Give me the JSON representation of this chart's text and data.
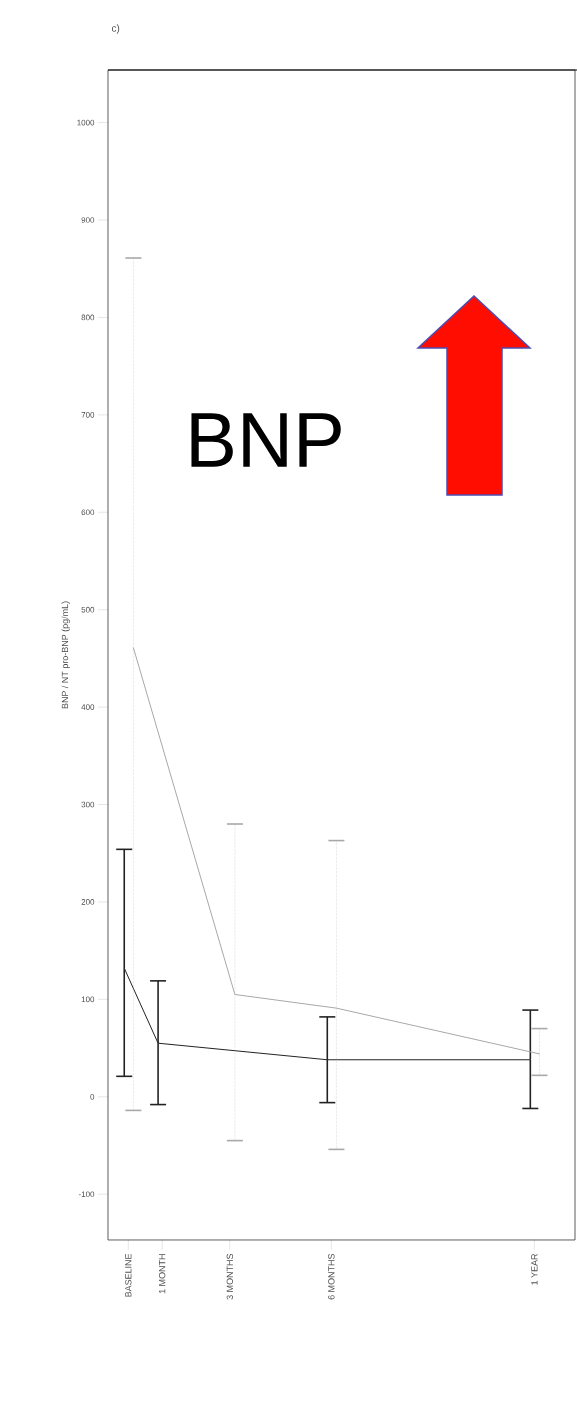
{
  "chart_data": {
    "type": "line",
    "annotations": [
      "c)",
      "BNP"
    ],
    "ylabel": "BNP / NT pro-BNP (pg/mL)",
    "categories": [
      "BASELINE",
      "1 MONTH",
      null,
      "3 MONTHS",
      null,
      null,
      "6 MONTHS",
      null,
      null,
      null,
      null,
      null,
      "1 YEAR"
    ],
    "ylim": [
      -147,
      1054
    ],
    "yticks": [
      -100,
      0,
      100,
      200,
      300,
      400,
      500,
      600,
      700,
      800,
      900,
      1000
    ],
    "grid": false,
    "marker": "none",
    "series": [
      {
        "color": "#222222",
        "values": [
          132,
          55,
          null,
          null,
          null,
          null,
          38,
          null,
          null,
          null,
          null,
          null,
          38
        ],
        "errors": [
          [
            21,
            254
          ],
          [
            -8,
            119
          ],
          null,
          null,
          null,
          null,
          [
            -6,
            82
          ],
          null,
          null,
          null,
          null,
          null,
          [
            -12,
            89
          ]
        ]
      },
      {
        "color": "#a8a8a8",
        "values": [
          461,
          null,
          null,
          105,
          null,
          null,
          91,
          null,
          null,
          null,
          null,
          null,
          44
        ],
        "errors": [
          [
            -14,
            861
          ],
          null,
          null,
          [
            -45,
            280
          ],
          null,
          null,
          [
            -54,
            263
          ],
          null,
          null,
          null,
          null,
          null,
          [
            22,
            70
          ]
        ]
      }
    ]
  }
}
